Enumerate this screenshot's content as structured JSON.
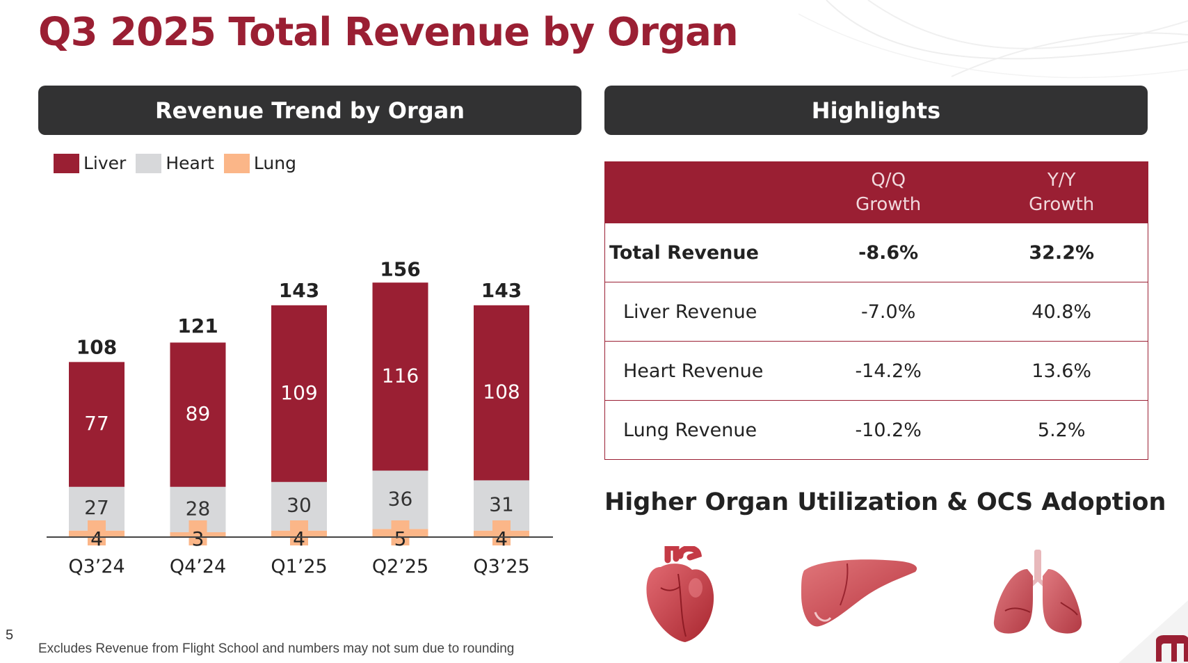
{
  "title": "Q3 2025 Total Revenue by Organ",
  "chart_panel": {
    "header": "Revenue Trend by Organ"
  },
  "chart_data": {
    "type": "bar",
    "stacked": true,
    "categories": [
      "Q3’24",
      "Q4’24",
      "Q1’25",
      "Q2’25",
      "Q3’25"
    ],
    "series": [
      {
        "name": "Liver",
        "values": [
          77,
          89,
          109,
          116,
          108
        ],
        "color": "#9a1f33"
      },
      {
        "name": "Heart",
        "values": [
          27,
          28,
          30,
          36,
          31
        ],
        "color": "#d7d8da"
      },
      {
        "name": "Lung",
        "values": [
          4,
          3,
          4,
          5,
          4
        ],
        "color": "#fbb688"
      }
    ],
    "totals": [
      108,
      121,
      143,
      156,
      143
    ],
    "legend_position": "top-left",
    "grid": false
  },
  "highlights": {
    "header": "Highlights",
    "col_qq_line1": "Q/Q",
    "col_qq_line2": "Growth",
    "col_yy_line1": "Y/Y",
    "col_yy_line2": "Growth",
    "rows": [
      {
        "label": "Total Revenue",
        "qq": "-8.6%",
        "yy": "32.2%"
      },
      {
        "label": "Liver Revenue",
        "qq": "-7.0%",
        "yy": "40.8%"
      },
      {
        "label": "Heart Revenue",
        "qq": "-14.2%",
        "yy": "13.6%"
      },
      {
        "label": "Lung Revenue",
        "qq": "-10.2%",
        "yy": "5.2%"
      }
    ]
  },
  "utilization_title": "Higher Organ Utilization & OCS Adoption",
  "icons": [
    "heart-icon",
    "liver-icon",
    "lungs-icon",
    "company-logo-icon"
  ],
  "page_number": "5",
  "footnote": "Excludes Revenue from Flight School and numbers may not sum due to rounding"
}
